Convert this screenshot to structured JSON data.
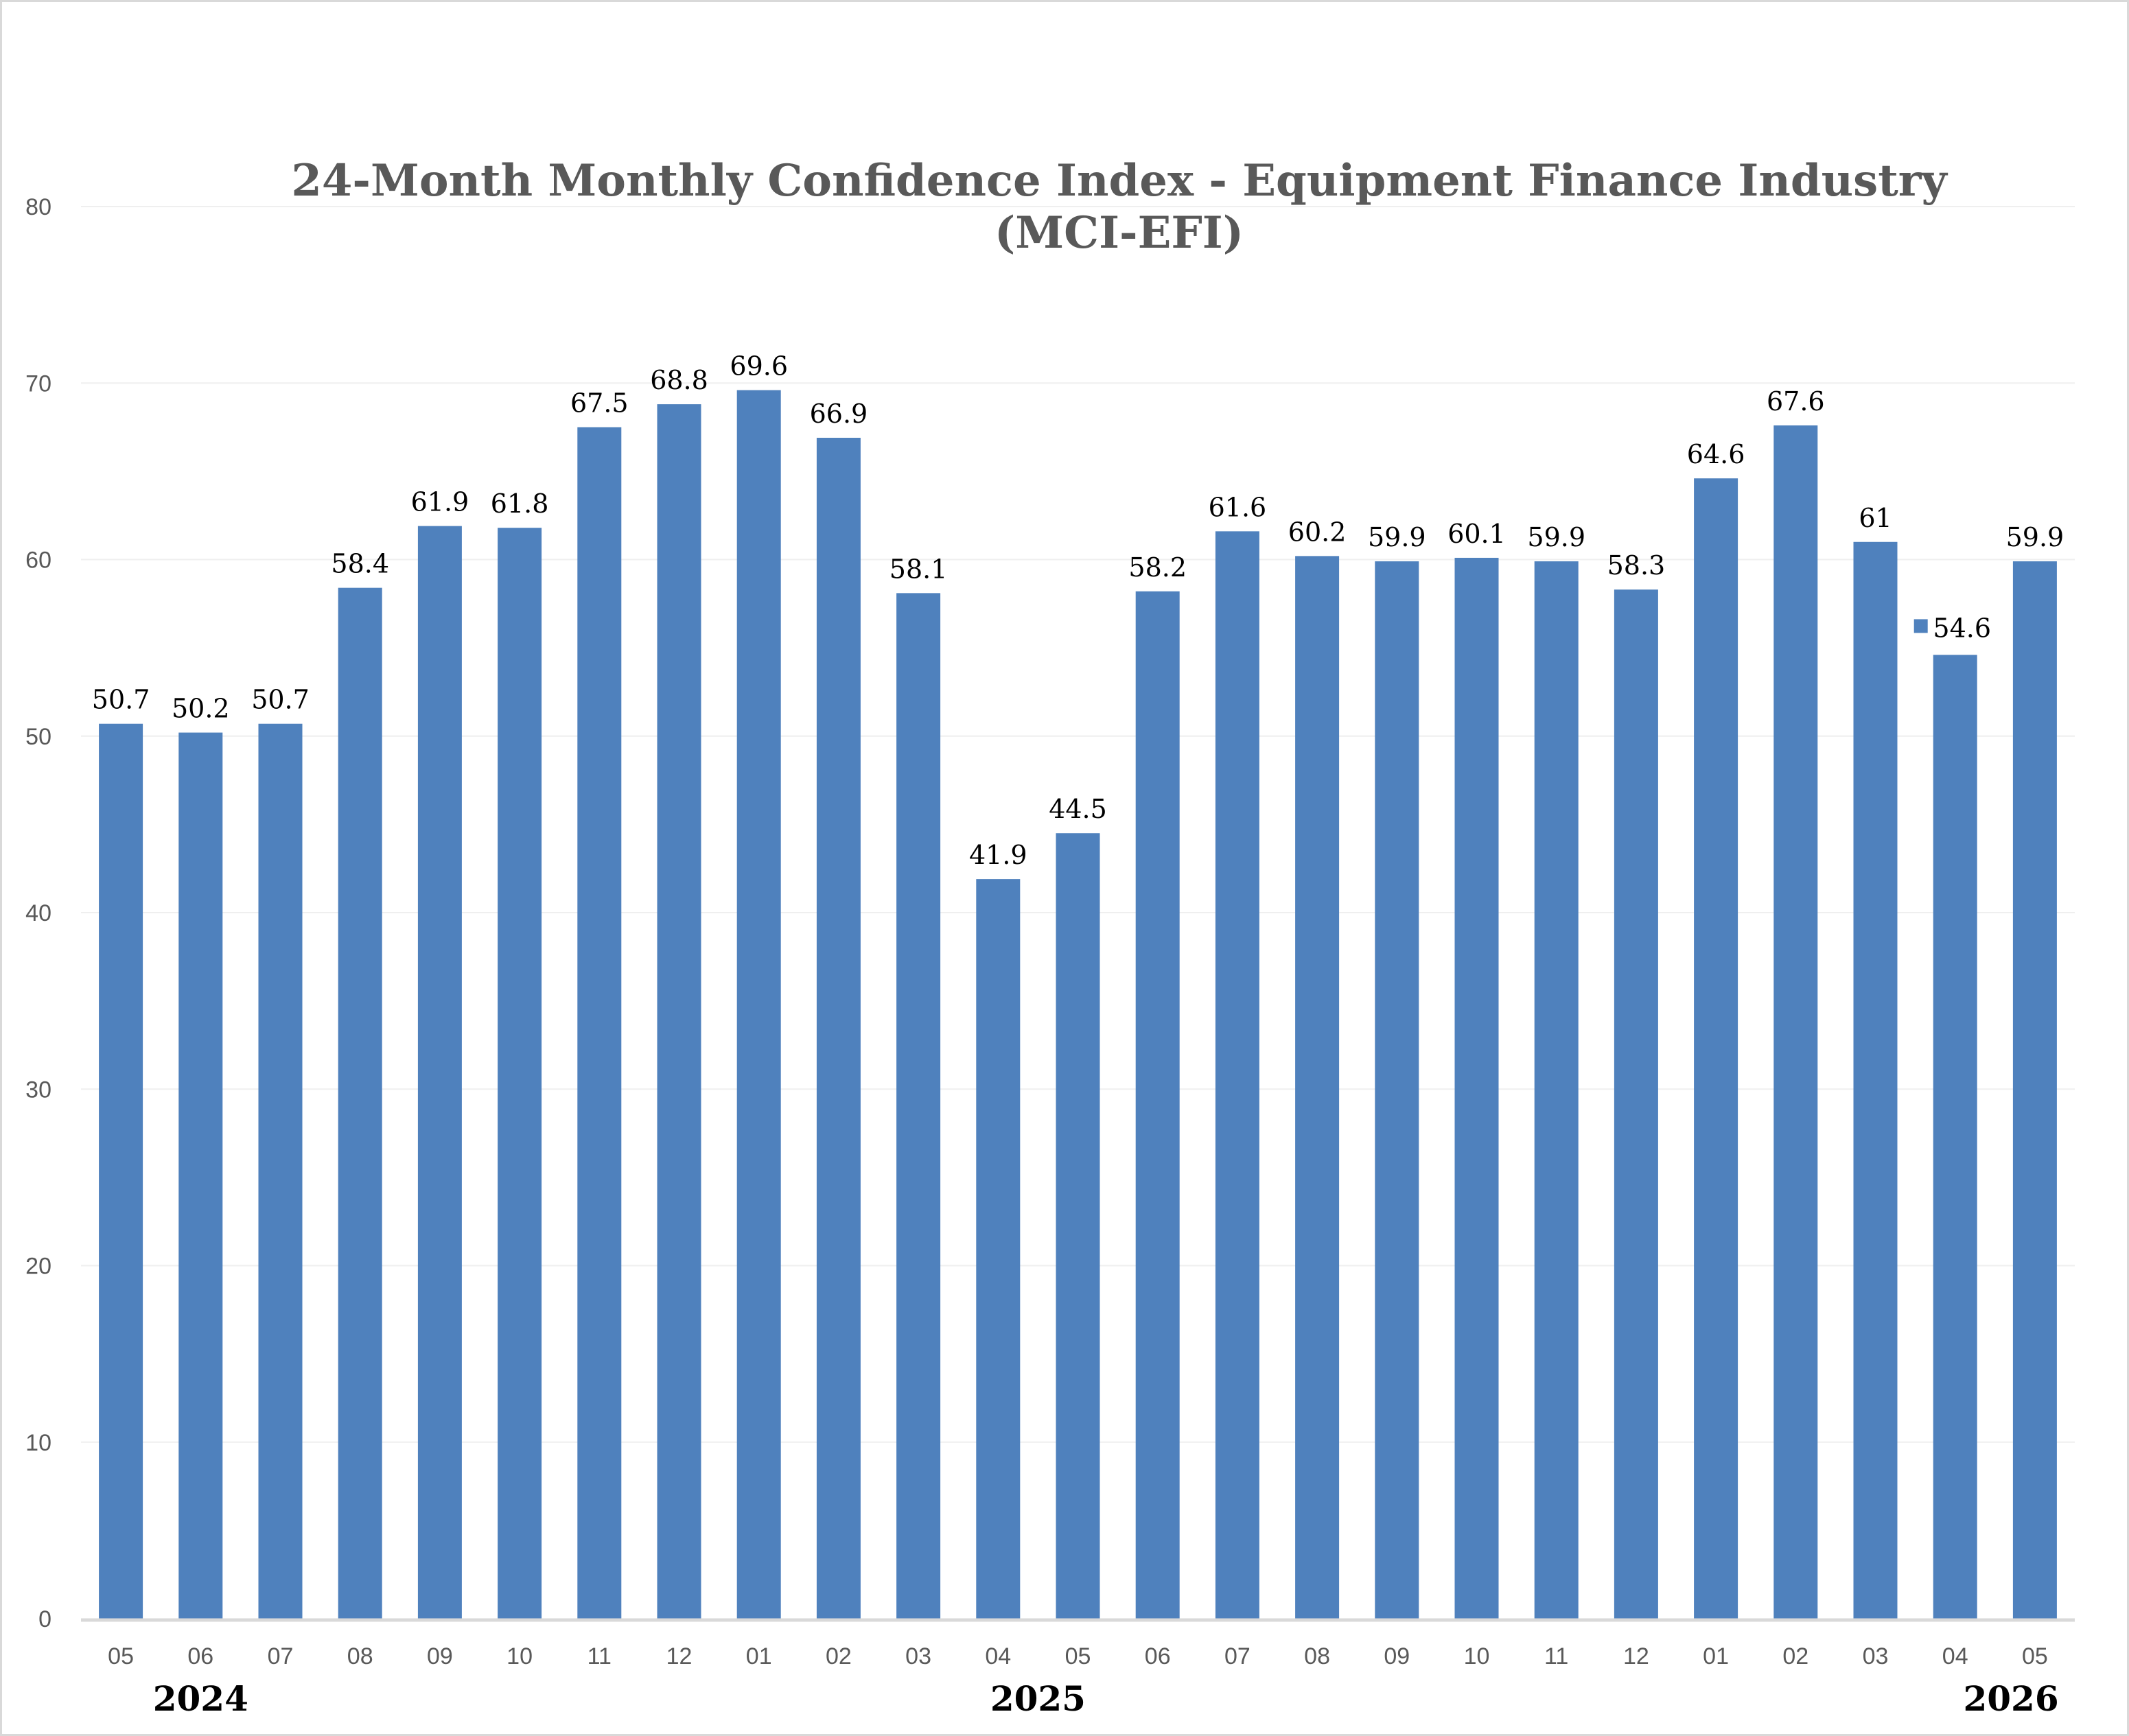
{
  "chart_data": {
    "type": "bar",
    "title": [
      "24-Month Monthly Confidence Index - Equipment Finance Industry",
      "(MCI-EFI)"
    ],
    "categories": [
      "05",
      "06",
      "07",
      "08",
      "09",
      "10",
      "11",
      "12",
      "01",
      "02",
      "03",
      "04",
      "05",
      "06",
      "07",
      "08",
      "09",
      "10",
      "11",
      "12",
      "01",
      "02",
      "03",
      "04",
      "05"
    ],
    "values": [
      50.7,
      50.2,
      50.7,
      58.4,
      61.9,
      61.8,
      67.5,
      68.8,
      69.6,
      66.9,
      58.1,
      41.9,
      44.5,
      58.2,
      61.6,
      60.2,
      59.9,
      60.1,
      59.9,
      58.3,
      64.6,
      67.6,
      61,
      54.6,
      59.9
    ],
    "data_labels": [
      "50.7",
      "50.2",
      "50.7",
      "58.4",
      "61.9",
      "61.8",
      "67.5",
      "68.8",
      "69.6",
      "66.9",
      "58.1",
      "41.9",
      "44.5",
      "58.2",
      "61.6",
      "60.2",
      "59.9",
      "60.1",
      "59.9",
      "58.3",
      "64.6",
      "67.6",
      "61",
      "54.6",
      "59.9"
    ],
    "year_labels": [
      {
        "text": "2024",
        "category_index": 1
      },
      {
        "text": "2025",
        "category_index": 11.5
      },
      {
        "text": "2026",
        "category_index": 23.7
      }
    ],
    "yticks": [
      0,
      10,
      20,
      30,
      40,
      50,
      60,
      70,
      80
    ],
    "ylim": [
      0,
      80
    ],
    "grid": true,
    "bar_color": "#4f81bd",
    "legend_marker_near_index": 23
  }
}
